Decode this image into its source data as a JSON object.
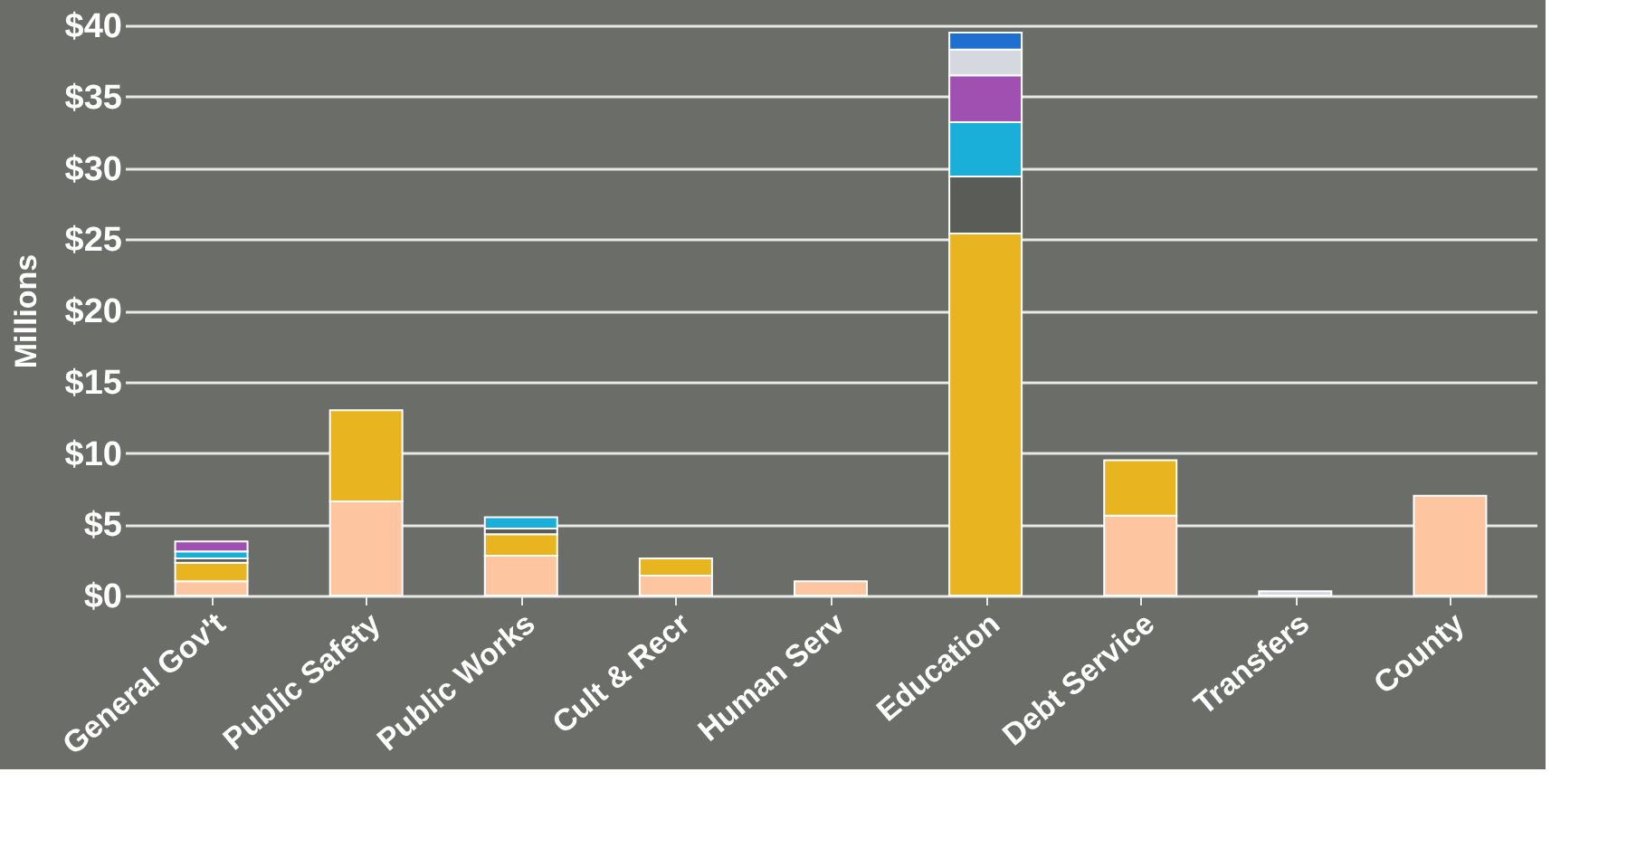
{
  "chart_data": {
    "type": "bar",
    "stacked": true,
    "ylabel": "Millions",
    "categories": [
      "General Gov't",
      "Public Safety",
      "Public Works",
      "Cult & Recr",
      "Human Serv",
      "Education",
      "Debt Service",
      "Transfers",
      "County"
    ],
    "series": [
      {
        "color": "#fdc6a0",
        "values": [
          1.0,
          6.6,
          2.8,
          1.4,
          1.0,
          null,
          5.6,
          null,
          7.0
        ]
      },
      {
        "color": "#e8b520",
        "values": [
          1.3,
          6.4,
          1.5,
          1.2,
          null,
          25.4,
          3.9,
          null,
          null
        ]
      },
      {
        "color": "#5a5c58",
        "values": [
          0.3,
          null,
          0.4,
          null,
          null,
          4.0,
          null,
          null,
          null
        ]
      },
      {
        "color": "#1aafd8",
        "values": [
          0.5,
          null,
          0.8,
          null,
          null,
          3.8,
          null,
          null,
          null
        ]
      },
      {
        "color": "#a050b0",
        "values": [
          0.7,
          null,
          null,
          null,
          null,
          3.3,
          null,
          null,
          null
        ]
      },
      {
        "color": "#d6d8e0",
        "values": [
          null,
          null,
          null,
          null,
          null,
          1.8,
          null,
          0.3,
          null
        ]
      },
      {
        "color": "#1f6fd0",
        "values": [
          null,
          null,
          null,
          null,
          null,
          1.2,
          null,
          null,
          null
        ]
      }
    ],
    "ylim": [
      0,
      40
    ],
    "yticks": [
      {
        "value": 0,
        "label": "$0"
      },
      {
        "value": 5,
        "label": "$5"
      },
      {
        "value": 10,
        "label": "$10"
      },
      {
        "value": 15,
        "label": "$15"
      },
      {
        "value": 20,
        "label": "$20"
      },
      {
        "value": 25,
        "label": "$25"
      },
      {
        "value": 30,
        "label": "$30"
      },
      {
        "value": 35,
        "label": "$35"
      },
      {
        "value": 40,
        "label": "$40"
      }
    ],
    "grid": "y"
  }
}
